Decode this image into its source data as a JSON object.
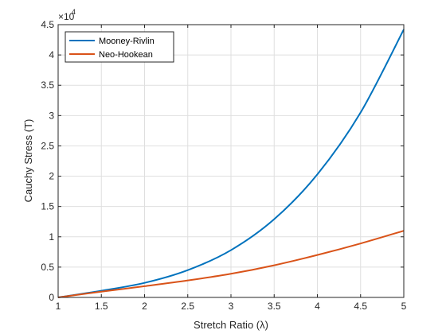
{
  "chart_data": {
    "type": "line",
    "xlabel": "Stretch Ratio (λ)",
    "ylabel": "Cauchy Stress (T)",
    "xlim": [
      1,
      5
    ],
    "ylim": [
      0,
      45000
    ],
    "y_exponent_label": "×10",
    "y_exponent_power": "4",
    "x_ticks": [
      1,
      1.5,
      2,
      2.5,
      3,
      3.5,
      4,
      4.5,
      5
    ],
    "x_tick_labels": [
      "1",
      "1.5",
      "2",
      "2.5",
      "3",
      "3.5",
      "4",
      "4.5",
      "5"
    ],
    "y_ticks": [
      0,
      5000,
      10000,
      15000,
      20000,
      25000,
      30000,
      35000,
      40000,
      45000
    ],
    "y_tick_labels": [
      "0",
      "0.5",
      "1",
      "1.5",
      "2",
      "2.5",
      "3",
      "3.5",
      "4",
      "4.5"
    ],
    "grid": true,
    "legend_position": "top-left",
    "x": [
      1,
      1.5,
      2,
      2.5,
      3,
      3.5,
      4,
      4.5,
      5
    ],
    "series": [
      {
        "name": "Mooney-Rivlin",
        "color": "#0072BD",
        "values": [
          0,
          1100,
          2400,
          4500,
          7800,
          12900,
          20300,
          30500,
          44200
        ]
      },
      {
        "name": "Neo-Hookean",
        "color": "#D95319",
        "values": [
          0,
          950,
          1850,
          2800,
          3900,
          5300,
          7000,
          8900,
          11000
        ]
      }
    ]
  }
}
